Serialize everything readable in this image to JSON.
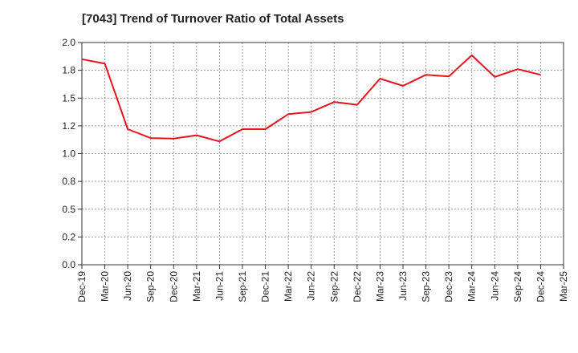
{
  "chart_data": {
    "type": "line",
    "title": "[7043]  Trend of Turnover Ratio of Total Assets",
    "xlabel": "",
    "ylabel": "",
    "ylim": [
      0,
      2.0
    ],
    "y_ticks": [
      "0.0",
      "0.2",
      "0.5",
      "0.8",
      "1.0",
      "1.2",
      "1.5",
      "1.8",
      "2.0"
    ],
    "x_ticks": [
      "Dec-19",
      "Mar-20",
      "Jun-20",
      "Sep-20",
      "Dec-20",
      "Mar-21",
      "Jun-21",
      "Sep-21",
      "Dec-21",
      "Mar-22",
      "Jun-22",
      "Sep-22",
      "Dec-22",
      "Mar-23",
      "Jun-23",
      "Sep-23",
      "Dec-23",
      "Mar-24",
      "Jun-24",
      "Sep-24",
      "Dec-24",
      "Mar-25"
    ],
    "grid": true,
    "series": [
      {
        "color": "#e8141b",
        "x": [
          "Dec-19",
          "Mar-20",
          "Jun-20",
          "Sep-20",
          "Dec-20",
          "Mar-21",
          "Jun-21",
          "Sep-21",
          "Dec-21",
          "Mar-22",
          "Jun-22",
          "Sep-22",
          "Dec-22",
          "Mar-23",
          "Jun-23",
          "Sep-23",
          "Dec-23",
          "Mar-24",
          "Jun-24",
          "Sep-24",
          "Dec-24"
        ],
        "values": [
          1.85,
          1.81,
          1.22,
          1.14,
          1.135,
          1.165,
          1.11,
          1.22,
          1.22,
          1.355,
          1.375,
          1.465,
          1.44,
          1.675,
          1.61,
          1.71,
          1.695,
          1.885,
          1.69,
          1.76,
          1.71
        ]
      }
    ]
  }
}
